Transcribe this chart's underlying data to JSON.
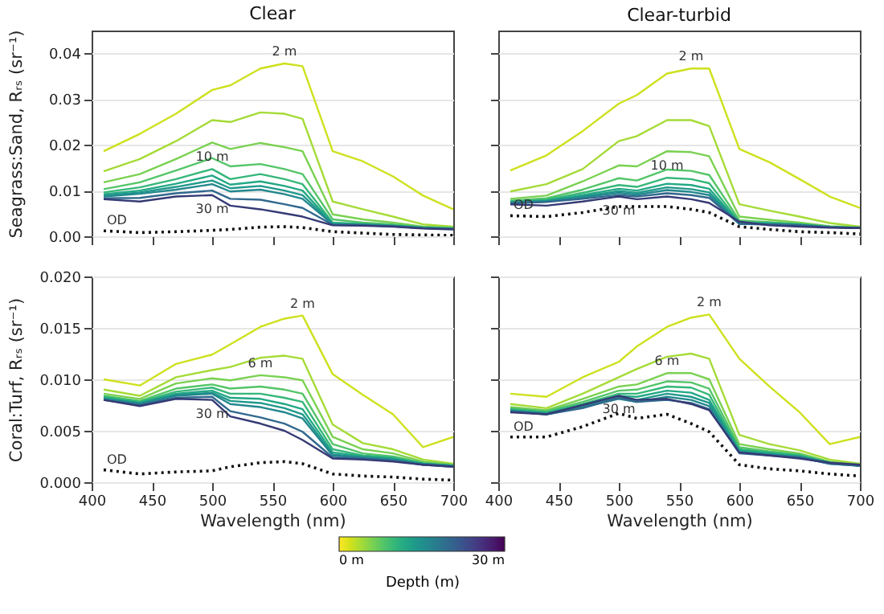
{
  "chart_data": [
    {
      "type": "line",
      "title": "Clear",
      "ylabel": "Seagrass:Sand, Rᵣₛ (sr⁻¹)",
      "x": [
        410,
        440,
        470,
        500,
        515,
        540,
        560,
        575,
        600,
        625,
        650,
        675,
        700
      ],
      "xlim": [
        400,
        700
      ],
      "xticks": [
        400,
        450,
        500,
        550,
        600,
        650,
        700
      ],
      "ylim": [
        0,
        0.045
      ],
      "yticks": [
        {
          "value": 0,
          "label": "0.00"
        },
        0.01,
        0.02,
        0.03,
        0.04
      ],
      "grid": "y",
      "legend": false,
      "marker": "none",
      "tick_labels": "y",
      "series": [
        {
          "name": "2 m",
          "color": "#cde11d",
          "values": [
            0.0186,
            0.0224,
            0.0268,
            0.032,
            0.033,
            0.0367,
            0.0378,
            0.0372,
            0.0186,
            0.0164,
            0.0131,
            0.0089,
            0.0059
          ]
        },
        {
          "color": "#a5db36",
          "values": [
            0.0142,
            0.0169,
            0.0208,
            0.0254,
            0.025,
            0.0271,
            0.0268,
            0.0257,
            0.0076,
            0.0059,
            0.0043,
            0.0026,
            0.0021
          ]
        },
        {
          "color": "#7ad151",
          "values": [
            0.0118,
            0.0136,
            0.0169,
            0.0205,
            0.0191,
            0.0204,
            0.0195,
            0.0186,
            0.0048,
            0.0037,
            0.003,
            0.0021,
            0.0019
          ]
        },
        {
          "color": "#54c568",
          "values": [
            0.0103,
            0.0118,
            0.0144,
            0.0171,
            0.0153,
            0.0158,
            0.0147,
            0.0136,
            0.0037,
            0.003,
            0.0026,
            0.002,
            0.0018
          ]
        },
        {
          "name": "10 m",
          "color": "#35b779",
          "values": [
            0.0096,
            0.0107,
            0.0125,
            0.0147,
            0.0125,
            0.0136,
            0.0125,
            0.0114,
            0.003,
            0.0027,
            0.0024,
            0.0019,
            0.0017
          ]
        },
        {
          "color": "#22a884",
          "values": [
            0.0092,
            0.01,
            0.0115,
            0.0133,
            0.0113,
            0.012,
            0.011,
            0.01,
            0.0028,
            0.0026,
            0.0023,
            0.0019,
            0.0017
          ]
        },
        {
          "color": "#1f988b",
          "values": [
            0.0089,
            0.0096,
            0.0108,
            0.0122,
            0.0105,
            0.011,
            0.01,
            0.009,
            0.0027,
            0.0025,
            0.0023,
            0.0018,
            0.0016
          ]
        },
        {
          "color": "#23888e",
          "values": [
            0.0087,
            0.0093,
            0.0102,
            0.0114,
            0.0098,
            0.0102,
            0.0092,
            0.0082,
            0.0026,
            0.0025,
            0.0022,
            0.0018,
            0.0016
          ]
        },
        {
          "color": "#31688e",
          "values": [
            0.0083,
            0.0084,
            0.0094,
            0.01,
            0.0082,
            0.008,
            0.007,
            0.0062,
            0.0025,
            0.0024,
            0.0022,
            0.0018,
            0.0016
          ]
        },
        {
          "name": "30 m",
          "color": "#353a75",
          "values": [
            0.0081,
            0.0076,
            0.0087,
            0.009,
            0.0067,
            0.0059,
            0.005,
            0.0043,
            0.0024,
            0.0023,
            0.0021,
            0.0017,
            0.0015
          ]
        },
        {
          "name": "OD",
          "color": "#111111",
          "line_style": "dotted",
          "values": [
            0.0012,
            0.0008,
            0.001,
            0.0013,
            0.0015,
            0.002,
            0.0021,
            0.0019,
            0.001,
            0.0007,
            0.0004,
            0.0003,
            0.0002
          ]
        }
      ]
    },
    {
      "type": "line",
      "title": "Clear-turbid",
      "x": [
        410,
        440,
        470,
        500,
        515,
        540,
        560,
        575,
        600,
        625,
        650,
        675,
        700
      ],
      "xlim": [
        400,
        700
      ],
      "xticks": [
        400,
        450,
        500,
        550,
        600,
        650,
        700
      ],
      "ylim": [
        0,
        0.045
      ],
      "yticks": [
        0,
        0.01,
        0.02,
        0.03,
        0.04
      ],
      "grid": "y",
      "legend": false,
      "marker": "none",
      "tick_labels": false,
      "series": [
        {
          "name": "2 m",
          "color": "#cde11d",
          "values": [
            0.0144,
            0.0177,
            0.023,
            0.029,
            0.0309,
            0.0356,
            0.0367,
            0.0367,
            0.0191,
            0.0162,
            0.0125,
            0.0087,
            0.0062
          ]
        },
        {
          "color": "#a5db36",
          "values": [
            0.0098,
            0.0114,
            0.0147,
            0.0208,
            0.0219,
            0.0254,
            0.0254,
            0.0241,
            0.007,
            0.0056,
            0.0043,
            0.0029,
            0.0021
          ]
        },
        {
          "color": "#7ad151",
          "values": [
            0.0082,
            0.0089,
            0.012,
            0.0155,
            0.0153,
            0.0186,
            0.0184,
            0.0175,
            0.0043,
            0.0036,
            0.003,
            0.0022,
            0.002
          ]
        },
        {
          "color": "#54c568",
          "values": [
            0.0078,
            0.0083,
            0.0102,
            0.0127,
            0.0122,
            0.0146,
            0.0143,
            0.0134,
            0.0035,
            0.0031,
            0.0027,
            0.0021,
            0.0019
          ]
        },
        {
          "name": "10 m",
          "color": "#35b779",
          "values": [
            0.0076,
            0.008,
            0.0095,
            0.0112,
            0.0108,
            0.0128,
            0.0125,
            0.0116,
            0.0031,
            0.0029,
            0.0026,
            0.0021,
            0.0018
          ]
        },
        {
          "color": "#22a884",
          "values": [
            0.0075,
            0.0078,
            0.009,
            0.0104,
            0.01,
            0.0115,
            0.0112,
            0.0104,
            0.0029,
            0.0028,
            0.0025,
            0.002,
            0.0018
          ]
        },
        {
          "color": "#1f988b",
          "values": [
            0.0074,
            0.0077,
            0.0087,
            0.0099,
            0.0095,
            0.0107,
            0.0103,
            0.0096,
            0.0028,
            0.0027,
            0.0025,
            0.002,
            0.0018
          ]
        },
        {
          "color": "#23888e",
          "values": [
            0.0073,
            0.0076,
            0.0085,
            0.0095,
            0.0091,
            0.0101,
            0.0097,
            0.009,
            0.0027,
            0.0026,
            0.0024,
            0.002,
            0.0018
          ]
        },
        {
          "color": "#31688e",
          "values": [
            0.0072,
            0.0075,
            0.0082,
            0.009,
            0.0087,
            0.0094,
            0.009,
            0.0084,
            0.0027,
            0.0026,
            0.0024,
            0.002,
            0.0018
          ]
        },
        {
          "name": "30 m",
          "color": "#353a75",
          "values": [
            0.007,
            0.0067,
            0.0076,
            0.0087,
            0.0081,
            0.0087,
            0.0081,
            0.0073,
            0.0032,
            0.0024,
            0.0021,
            0.0019,
            0.0018
          ]
        },
        {
          "name": "OD",
          "color": "#111111",
          "line_style": "dotted",
          "values": [
            0.0045,
            0.0043,
            0.0052,
            0.0065,
            0.0065,
            0.0065,
            0.0059,
            0.0052,
            0.0021,
            0.0015,
            0.001,
            0.0008,
            0.0005
          ]
        }
      ]
    },
    {
      "type": "line",
      "ylabel": "Coral:Turf, Rᵣₛ (sr⁻¹)",
      "xlabel": "Wavelength (nm)",
      "clabel": "Depth (m)",
      "clim": [
        0,
        30
      ],
      "cticks": [
        {
          "value": 0,
          "label": "0 m"
        },
        {
          "value": 30,
          "label": "30 m"
        }
      ],
      "x": [
        410,
        440,
        470,
        500,
        515,
        540,
        560,
        575,
        600,
        625,
        650,
        675,
        700
      ],
      "xlim": [
        400,
        700
      ],
      "xticks": [
        400,
        450,
        500,
        550,
        600,
        650,
        700
      ],
      "ylim": [
        0,
        0.02
      ],
      "yticks": [
        {
          "value": 0,
          "label": "0.000"
        },
        0.005,
        {
          "value": 0.01,
          "label": "0.010"
        },
        0.015,
        {
          "value": 0.02,
          "label": "0.020"
        }
      ],
      "grid": "y",
      "legend": false,
      "marker": "none",
      "series": [
        {
          "name": "2 m",
          "color": "#cde11d",
          "values": [
            0.01,
            0.0094,
            0.0115,
            0.0124,
            0.0134,
            0.0151,
            0.0159,
            0.0162,
            0.0105,
            0.0085,
            0.0066,
            0.0034,
            0.0044
          ]
        },
        {
          "color": "#a5db36",
          "values": [
            0.009,
            0.0084,
            0.0102,
            0.0109,
            0.0112,
            0.0121,
            0.0123,
            0.012,
            0.0056,
            0.0038,
            0.0032,
            0.0022,
            0.0018
          ]
        },
        {
          "name": "6 m",
          "color": "#7ad151",
          "values": [
            0.0086,
            0.0081,
            0.0096,
            0.0101,
            0.0099,
            0.0104,
            0.0102,
            0.0099,
            0.0044,
            0.0032,
            0.0028,
            0.002,
            0.0017
          ]
        },
        {
          "color": "#54c568",
          "values": [
            0.0084,
            0.0079,
            0.0091,
            0.0095,
            0.0091,
            0.0093,
            0.009,
            0.0086,
            0.0037,
            0.0028,
            0.0025,
            0.0019,
            0.0016
          ]
        },
        {
          "color": "#35b779",
          "values": [
            0.0083,
            0.0078,
            0.0088,
            0.0092,
            0.0086,
            0.0086,
            0.0082,
            0.0078,
            0.0032,
            0.0026,
            0.0024,
            0.0018,
            0.0016
          ]
        },
        {
          "color": "#22a884",
          "values": [
            0.0082,
            0.0077,
            0.0086,
            0.0089,
            0.0082,
            0.0081,
            0.0076,
            0.0071,
            0.0029,
            0.0025,
            0.0023,
            0.0018,
            0.0016
          ]
        },
        {
          "color": "#1f988b",
          "values": [
            0.0081,
            0.0077,
            0.0085,
            0.0087,
            0.0079,
            0.0077,
            0.0072,
            0.0066,
            0.0027,
            0.0024,
            0.0022,
            0.0018,
            0.0016
          ]
        },
        {
          "color": "#23888e",
          "values": [
            0.0081,
            0.0076,
            0.0084,
            0.0086,
            0.0076,
            0.0073,
            0.0068,
            0.0062,
            0.0026,
            0.0024,
            0.0022,
            0.0017,
            0.0016
          ]
        },
        {
          "color": "#31688e",
          "values": [
            0.008,
            0.0075,
            0.0082,
            0.0083,
            0.0069,
            0.0063,
            0.0057,
            0.0049,
            0.0024,
            0.0023,
            0.0021,
            0.0017,
            0.0015
          ]
        },
        {
          "name": "30 m",
          "color": "#353a75",
          "values": [
            0.008,
            0.0074,
            0.0081,
            0.008,
            0.0064,
            0.0057,
            0.005,
            0.0041,
            0.0023,
            0.0022,
            0.002,
            0.0017,
            0.0015
          ]
        },
        {
          "name": "OD",
          "color": "#111111",
          "line_style": "dotted",
          "values": [
            0.0012,
            0.0008,
            0.001,
            0.0011,
            0.0015,
            0.0019,
            0.002,
            0.0018,
            0.0008,
            0.0006,
            0.0005,
            0.0003,
            0.0002
          ]
        }
      ]
    },
    {
      "type": "line",
      "xlabel": "Wavelength (nm)",
      "x": [
        410,
        440,
        470,
        500,
        515,
        540,
        560,
        575,
        600,
        625,
        650,
        675,
        700
      ],
      "xlim": [
        400,
        700
      ],
      "xticks": [
        400,
        450,
        500,
        550,
        600,
        650,
        700
      ],
      "ylim": [
        0,
        0.02
      ],
      "yticks": [
        0,
        0.005,
        0.01,
        0.015,
        0.02
      ],
      "grid": "y",
      "legend": false,
      "marker": "none",
      "tick_labels": "x",
      "series": [
        {
          "name": "2 m",
          "color": "#cde11d",
          "values": [
            0.0086,
            0.0083,
            0.0102,
            0.0117,
            0.0132,
            0.0151,
            0.016,
            0.0163,
            0.012,
            0.0093,
            0.0068,
            0.0037,
            0.0044
          ]
        },
        {
          "color": "#a5db36",
          "values": [
            0.0076,
            0.0072,
            0.0086,
            0.0102,
            0.011,
            0.0122,
            0.0125,
            0.012,
            0.0046,
            0.0037,
            0.0031,
            0.0022,
            0.0018
          ]
        },
        {
          "name": "6 m",
          "color": "#7ad151",
          "values": [
            0.0073,
            0.007,
            0.0081,
            0.0093,
            0.0095,
            0.0106,
            0.0106,
            0.01,
            0.0037,
            0.0032,
            0.0028,
            0.002,
            0.0017
          ]
        },
        {
          "color": "#54c568",
          "values": [
            0.0072,
            0.0069,
            0.0078,
            0.0089,
            0.009,
            0.0098,
            0.0097,
            0.0091,
            0.0034,
            0.003,
            0.0027,
            0.0019,
            0.0017
          ]
        },
        {
          "color": "#35b779",
          "values": [
            0.0071,
            0.0068,
            0.0076,
            0.0086,
            0.0086,
            0.0093,
            0.0092,
            0.0085,
            0.0032,
            0.0029,
            0.0026,
            0.0019,
            0.0016
          ]
        },
        {
          "color": "#22a884",
          "values": [
            0.007,
            0.0067,
            0.0075,
            0.0084,
            0.0083,
            0.0089,
            0.0087,
            0.008,
            0.0031,
            0.0028,
            0.0025,
            0.0019,
            0.0016
          ]
        },
        {
          "color": "#1f988b",
          "values": [
            0.007,
            0.0067,
            0.0074,
            0.0082,
            0.008,
            0.0086,
            0.0083,
            0.0077,
            0.003,
            0.0027,
            0.0025,
            0.0019,
            0.0016
          ]
        },
        {
          "color": "#23888e",
          "values": [
            0.0069,
            0.0066,
            0.0073,
            0.0081,
            0.0078,
            0.0083,
            0.008,
            0.0074,
            0.0029,
            0.0027,
            0.0024,
            0.0018,
            0.0016
          ]
        },
        {
          "color": "#31688e",
          "values": [
            0.0069,
            0.0066,
            0.0072,
            0.0082,
            0.0078,
            0.008,
            0.0077,
            0.0071,
            0.0028,
            0.0026,
            0.0024,
            0.0018,
            0.0016
          ]
        },
        {
          "name": "30 m",
          "color": "#353a75",
          "values": [
            0.0068,
            0.0066,
            0.0075,
            0.0084,
            0.008,
            0.0081,
            0.0076,
            0.007,
            0.0029,
            0.0026,
            0.0023,
            0.0019,
            0.0017
          ]
        },
        {
          "name": "OD",
          "color": "#111111",
          "line_style": "dotted",
          "values": [
            0.0044,
            0.0044,
            0.0054,
            0.0067,
            0.0062,
            0.0066,
            0.0057,
            0.0049,
            0.0017,
            0.0013,
            0.0011,
            0.0008,
            0.0006
          ]
        }
      ]
    }
  ]
}
